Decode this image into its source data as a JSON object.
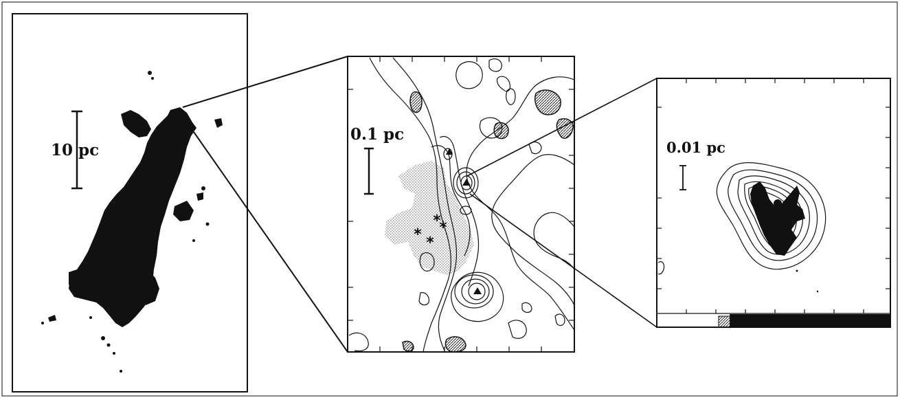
{
  "panels": [
    {
      "id": "large-scale",
      "scale_label": "10 pc"
    },
    {
      "id": "mid-scale",
      "scale_label": "0.1 pc"
    },
    {
      "id": "small-scale",
      "scale_label": "0.01 pc"
    }
  ],
  "colors": {
    "ink": "#111111",
    "stipple": "#b8b8b8",
    "background": "#ffffff"
  }
}
